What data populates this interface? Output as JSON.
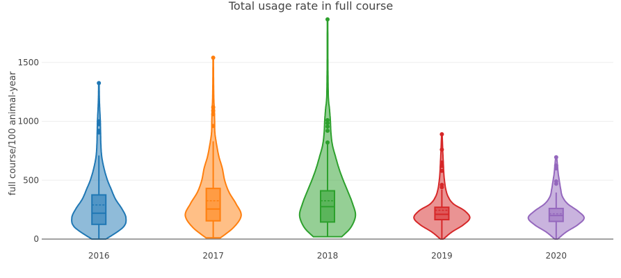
{
  "chart_data": {
    "type": "violin",
    "title": "Total usage rate in full course",
    "xlabel": "",
    "ylabel": "full course/100 animal-year",
    "categories": [
      "2016",
      "2017",
      "2018",
      "2019",
      "2020"
    ],
    "ylim": [
      0,
      1900
    ],
    "yticks": [
      0,
      500,
      1000,
      1500
    ],
    "grid": true,
    "legend": "none",
    "series": [
      {
        "category": "2016",
        "color": "#1f77b4",
        "min": 0,
        "q1": 125,
        "median": 220,
        "mean": 290,
        "q3": 375,
        "upper_fence": 710,
        "max": 1325,
        "outliers": [
          1325,
          1000,
          975,
          920,
          905
        ],
        "density": [
          [
            0,
            0.25
          ],
          [
            100,
            0.85
          ],
          [
            180,
            0.95
          ],
          [
            260,
            0.8
          ],
          [
            340,
            0.58
          ],
          [
            430,
            0.42
          ],
          [
            500,
            0.3
          ],
          [
            600,
            0.18
          ],
          [
            700,
            0.1
          ],
          [
            800,
            0.07
          ],
          [
            900,
            0.06
          ],
          [
            1000,
            0.05
          ],
          [
            1100,
            0.03
          ],
          [
            1200,
            0.015
          ],
          [
            1325,
            0.008
          ]
        ]
      },
      {
        "category": "2017",
        "color": "#ff7f0e",
        "min": 10,
        "q1": 155,
        "median": 255,
        "mean": 325,
        "q3": 430,
        "upper_fence": 830,
        "max": 1540,
        "outliers": [
          1540,
          1120,
          1090,
          1060,
          960
        ],
        "density": [
          [
            10,
            0.25
          ],
          [
            100,
            0.72
          ],
          [
            200,
            0.98
          ],
          [
            300,
            0.8
          ],
          [
            400,
            0.55
          ],
          [
            500,
            0.4
          ],
          [
            600,
            0.32
          ],
          [
            700,
            0.2
          ],
          [
            800,
            0.12
          ],
          [
            900,
            0.06
          ],
          [
            1000,
            0.05
          ],
          [
            1100,
            0.04
          ],
          [
            1200,
            0.02
          ],
          [
            1400,
            0.01
          ],
          [
            1540,
            0.008
          ]
        ]
      },
      {
        "category": "2018",
        "color": "#2ca02c",
        "min": 20,
        "q1": 145,
        "median": 275,
        "mean": 325,
        "q3": 410,
        "upper_fence": 820,
        "max": 1865,
        "outliers": [
          1865,
          1010,
          985,
          955,
          920,
          820
        ],
        "density": [
          [
            20,
            0.5
          ],
          [
            100,
            0.82
          ],
          [
            200,
            0.98
          ],
          [
            300,
            0.88
          ],
          [
            400,
            0.72
          ],
          [
            500,
            0.55
          ],
          [
            600,
            0.4
          ],
          [
            700,
            0.28
          ],
          [
            800,
            0.17
          ],
          [
            900,
            0.12
          ],
          [
            1000,
            0.1
          ],
          [
            1100,
            0.07
          ],
          [
            1200,
            0.03
          ],
          [
            1400,
            0.015
          ],
          [
            1600,
            0.01
          ],
          [
            1865,
            0.008
          ]
        ]
      },
      {
        "category": "2019",
        "color": "#d62728",
        "min": 0,
        "q1": 165,
        "median": 210,
        "mean": 245,
        "q3": 270,
        "upper_fence": 420,
        "max": 890,
        "outliers": [
          890,
          760,
          650,
          620,
          580,
          460,
          440
        ],
        "density": [
          [
            0,
            0.05
          ],
          [
            60,
            0.35
          ],
          [
            120,
            0.75
          ],
          [
            180,
            0.98
          ],
          [
            240,
            0.8
          ],
          [
            300,
            0.4
          ],
          [
            360,
            0.22
          ],
          [
            420,
            0.14
          ],
          [
            480,
            0.1
          ],
          [
            550,
            0.07
          ],
          [
            650,
            0.05
          ],
          [
            750,
            0.03
          ],
          [
            890,
            0.01
          ]
        ]
      },
      {
        "category": "2020",
        "color": "#9467bd",
        "min": 0,
        "q1": 150,
        "median": 200,
        "mean": 215,
        "q3": 260,
        "upper_fence": 395,
        "max": 695,
        "outliers": [
          695,
          625,
          600,
          490,
          470
        ],
        "density": [
          [
            0,
            0.05
          ],
          [
            60,
            0.35
          ],
          [
            120,
            0.75
          ],
          [
            180,
            0.98
          ],
          [
            240,
            0.75
          ],
          [
            300,
            0.4
          ],
          [
            360,
            0.22
          ],
          [
            420,
            0.16
          ],
          [
            480,
            0.12
          ],
          [
            560,
            0.07
          ],
          [
            640,
            0.04
          ],
          [
            695,
            0.015
          ]
        ]
      }
    ]
  }
}
